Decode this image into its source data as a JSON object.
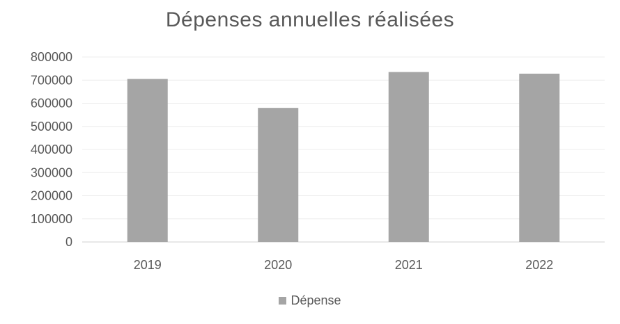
{
  "chart_data": {
    "type": "bar",
    "title": "Dépenses annuelles réalisées",
    "categories": [
      "2019",
      "2020",
      "2021",
      "2022"
    ],
    "series": [
      {
        "name": "Dépense",
        "values": [
          705000,
          580000,
          735000,
          728000
        ],
        "color": "#a5a5a5"
      }
    ],
    "ylim": [
      0,
      800000
    ],
    "yticks": [
      0,
      100000,
      200000,
      300000,
      400000,
      500000,
      600000,
      700000,
      800000
    ],
    "grid": true,
    "legend_position": "bottom"
  }
}
